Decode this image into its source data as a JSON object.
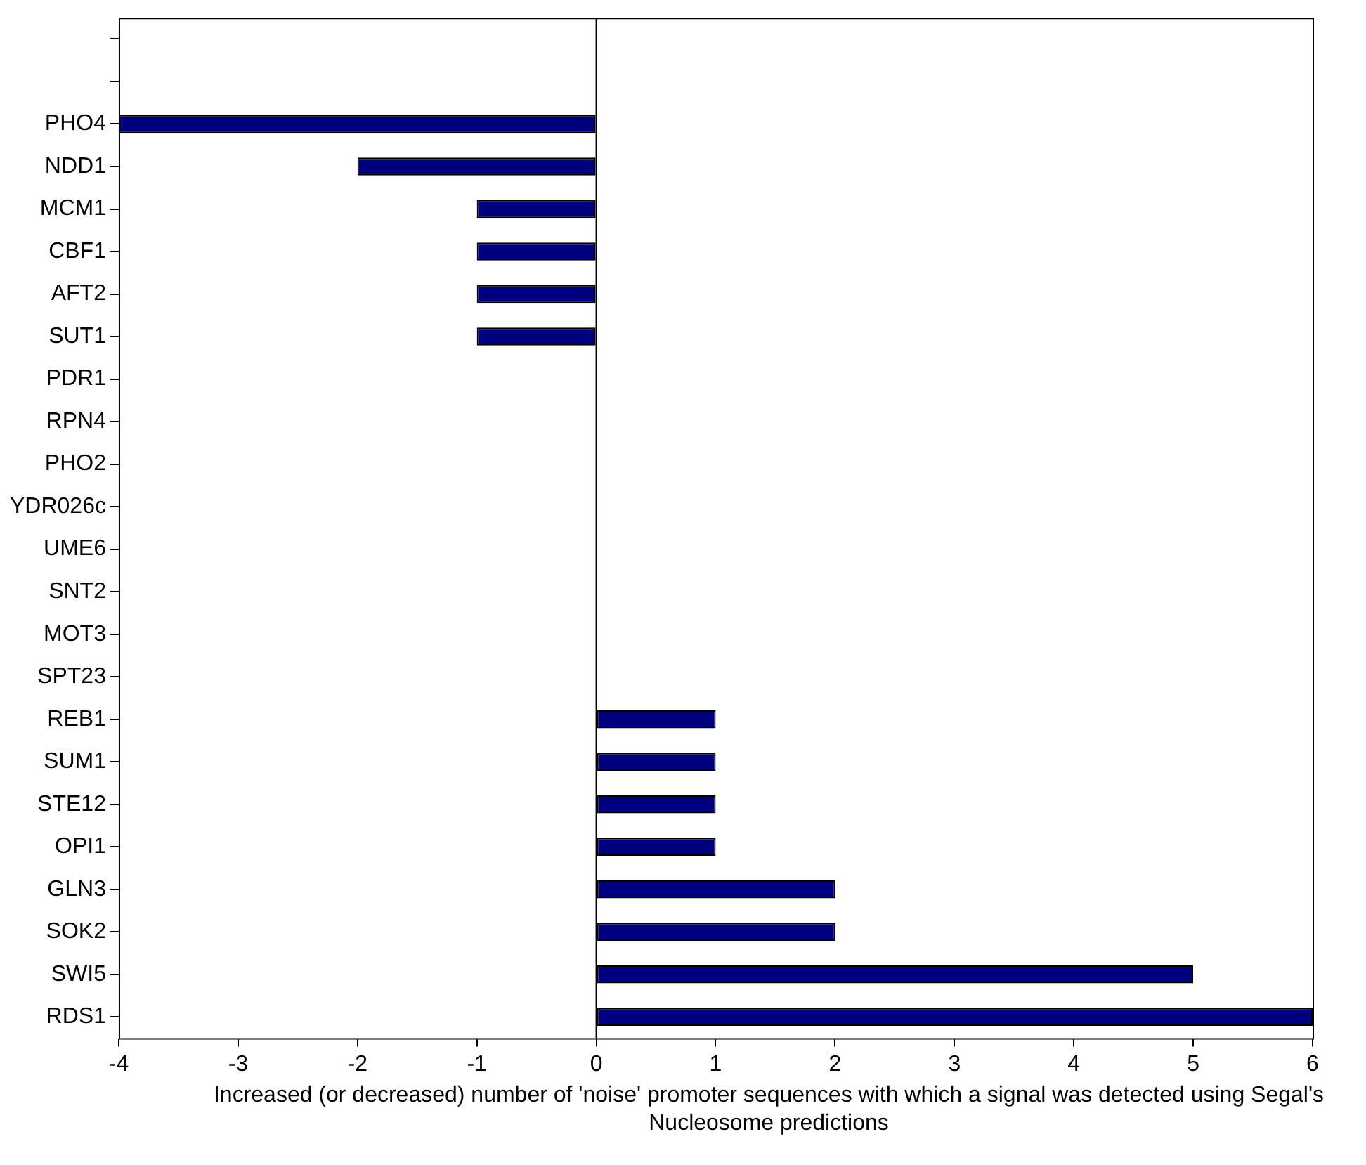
{
  "chart_data": {
    "type": "bar",
    "orientation": "horizontal",
    "xlabel": "Increased (or decreased) number of 'noise' promoter sequences with which a signal was detected using Segal's Nucleosome predictions",
    "categories": [
      null,
      null,
      "PHO4",
      "NDD1",
      "MCM1",
      "CBF1",
      "AFT2",
      "SUT1",
      "PDR1",
      "RPN4",
      "PHO2",
      "YDR026c",
      "UME6",
      "SNT2",
      "MOT3",
      "SPT23",
      "REB1",
      "SUM1",
      "STE12",
      "OPI1",
      "GLN3",
      "SOK2",
      "SWI5",
      "RDS1"
    ],
    "values": [
      null,
      null,
      -4,
      -2,
      -1,
      -1,
      -1,
      -1,
      0,
      0,
      0,
      0,
      0,
      0,
      0,
      0,
      1,
      1,
      1,
      1,
      2,
      2,
      5,
      6
    ],
    "color": "#00007f",
    "xlim": [
      -4,
      6
    ],
    "xticks": [
      -4,
      -3,
      -2,
      -1,
      0,
      1,
      2,
      3,
      4,
      5,
      6
    ],
    "ref_lines": [
      {
        "axis": "x",
        "value": 0,
        "color": "#000000"
      }
    ],
    "grid": false,
    "legend": false
  }
}
